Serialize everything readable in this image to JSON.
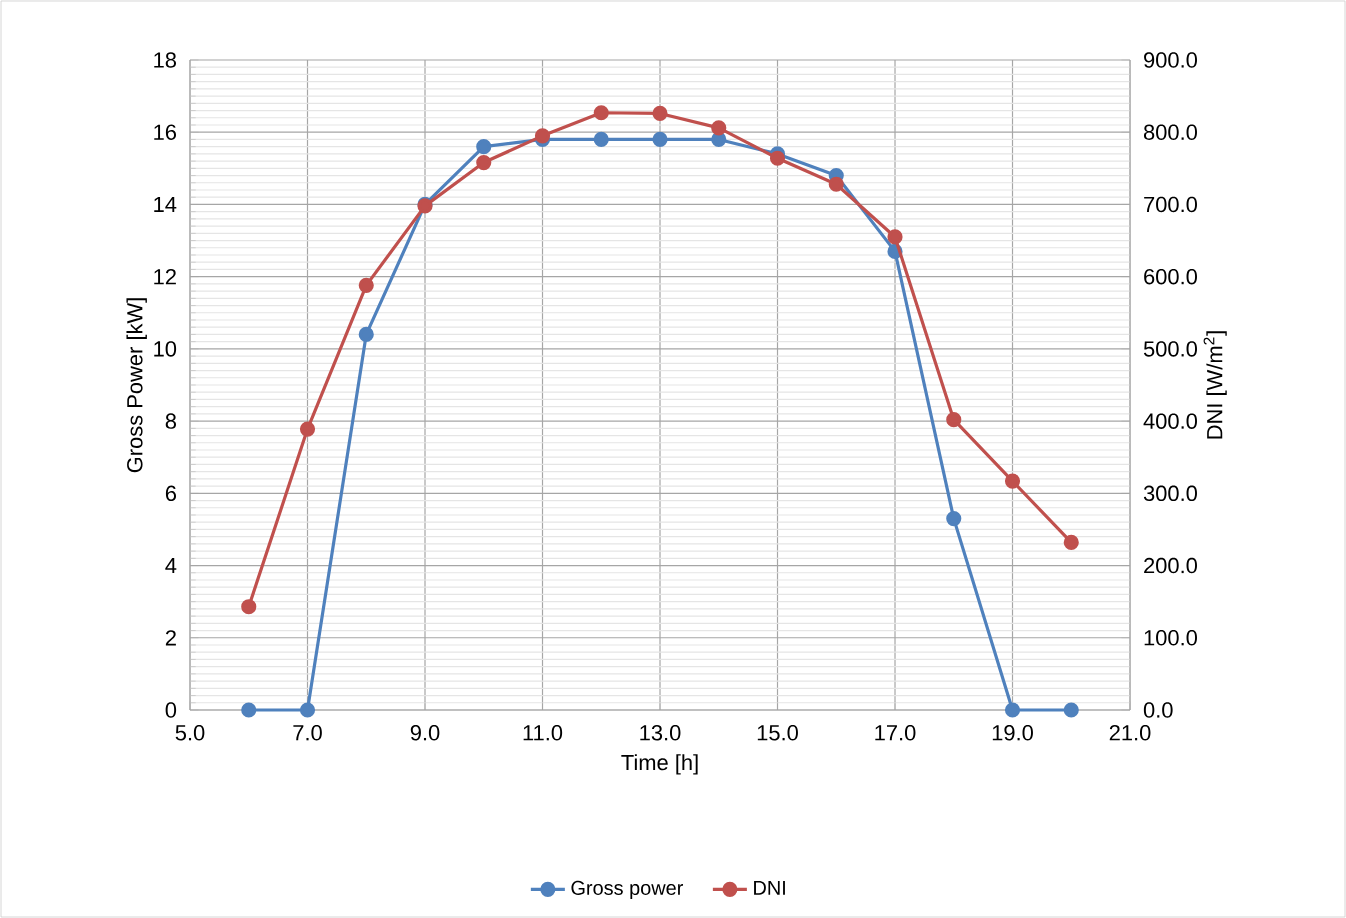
{
  "chart_data": {
    "type": "line",
    "xlabel": "Time [h]",
    "ylabel": "Gross Power [kW]",
    "y2label": "DNI [W/m$^{2}$]",
    "x": [
      6,
      7,
      8,
      9,
      10,
      11,
      12,
      13,
      14,
      15,
      16,
      17,
      18,
      19,
      20
    ],
    "series": [
      {
        "name": "Gross power",
        "color": "#4f81bd",
        "values": [
          0,
          0,
          10.4,
          14.0,
          15.6,
          15.8,
          15.8,
          15.8,
          15.8,
          15.4,
          14.8,
          12.7,
          5.3,
          0,
          0
        ]
      },
      {
        "name": "DNI",
        "color": "#c0504d",
        "axis": "y2",
        "values": [
          143,
          389,
          588,
          698,
          758,
          795,
          827,
          826,
          806,
          764,
          728,
          655,
          402,
          317,
          232
        ]
      }
    ],
    "xlim": [
      5,
      21
    ],
    "xticks": [
      {
        "value": 5,
        "label": "5.0"
      },
      {
        "value": 7,
        "label": "7.0"
      },
      {
        "value": 9,
        "label": "9.0"
      },
      {
        "value": 11,
        "label": "11.0"
      },
      {
        "value": 13,
        "label": "13.0"
      },
      {
        "value": 15,
        "label": "15.0"
      },
      {
        "value": 17,
        "label": "17.0"
      },
      {
        "value": 19,
        "label": "19.0"
      },
      {
        "value": 21,
        "label": "21.0"
      }
    ],
    "ylim": [
      0,
      18
    ],
    "yticks": [
      0,
      2,
      4,
      6,
      8,
      10,
      12,
      14,
      16,
      18
    ],
    "y2lim": [
      0,
      900
    ],
    "y2ticks": [
      {
        "value": 0,
        "label": "0.0"
      },
      {
        "value": 100,
        "label": "100.0"
      },
      {
        "value": 200,
        "label": "200.0"
      },
      {
        "value": 300,
        "label": "300.0"
      },
      {
        "value": 400,
        "label": "400.0"
      },
      {
        "value": 500,
        "label": "500.0"
      },
      {
        "value": 600,
        "label": "600.0"
      },
      {
        "value": 700,
        "label": "700.0"
      },
      {
        "value": 800,
        "label": "800.0"
      },
      {
        "value": 900,
        "label": "900.0"
      }
    ],
    "grid": true,
    "legend": "bottom",
    "marker": "circle",
    "line_style": "solid"
  }
}
